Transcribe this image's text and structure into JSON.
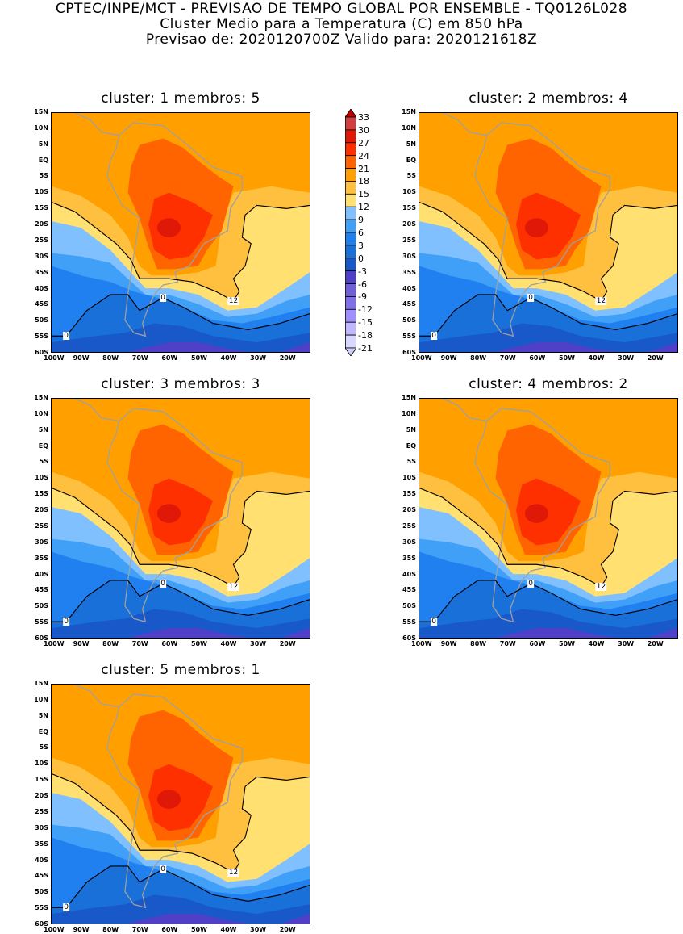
{
  "header": {
    "line1": "CPTEC/INPE/MCT - PREVISAO DE TEMPO GLOBAL POR ENSEMBLE - TQ0126L028",
    "line2": "Cluster Medio para a Temperatura (C) em 850 hPa",
    "line3": "Previsao de: 2020120700Z   Valido para: 2020121618Z"
  },
  "panels": [
    {
      "title": "cluster: 1   membros: 5",
      "labels": [
        "12",
        "0",
        "0"
      ]
    },
    {
      "title": "cluster: 2   membros: 4",
      "labels": [
        "12",
        "0",
        "0"
      ]
    },
    {
      "title": "cluster: 3   membros: 3",
      "labels": [
        "12",
        "0",
        "0"
      ]
    },
    {
      "title": "cluster: 4   membros: 2",
      "labels": [
        "12",
        "0",
        "0"
      ]
    },
    {
      "title": "cluster: 5   membros: 1",
      "labels": [
        "12",
        "0",
        "0"
      ]
    }
  ],
  "lat_ticks": [
    "15N",
    "10N",
    "5N",
    "EQ",
    "5S",
    "10S",
    "15S",
    "20S",
    "25S",
    "30S",
    "35S",
    "40S",
    "45S",
    "50S",
    "55S",
    "60S"
  ],
  "lon_ticks": [
    "100W",
    "90W",
    "80W",
    "70W",
    "60W",
    "50W",
    "40W",
    "30W",
    "20W"
  ],
  "colorbar": {
    "levels": [
      "33",
      "30",
      "27",
      "24",
      "21",
      "18",
      "15",
      "12",
      "9",
      "6",
      "3",
      "0",
      "-3",
      "-6",
      "-9",
      "-12",
      "-15",
      "-18",
      "-21"
    ],
    "colors": [
      "#c00000",
      "#d04040",
      "#e01808",
      "#ff3000",
      "#ff6400",
      "#ffa000",
      "#ffc040",
      "#ffe070",
      "#80c0ff",
      "#40a0f8",
      "#2080f0",
      "#1870d8",
      "#1858c8",
      "#5040c8",
      "#7060d8",
      "#8070e8",
      "#a090ff",
      "#c0b8ff",
      "#d8d8ff",
      "#d0d0f8"
    ]
  }
}
